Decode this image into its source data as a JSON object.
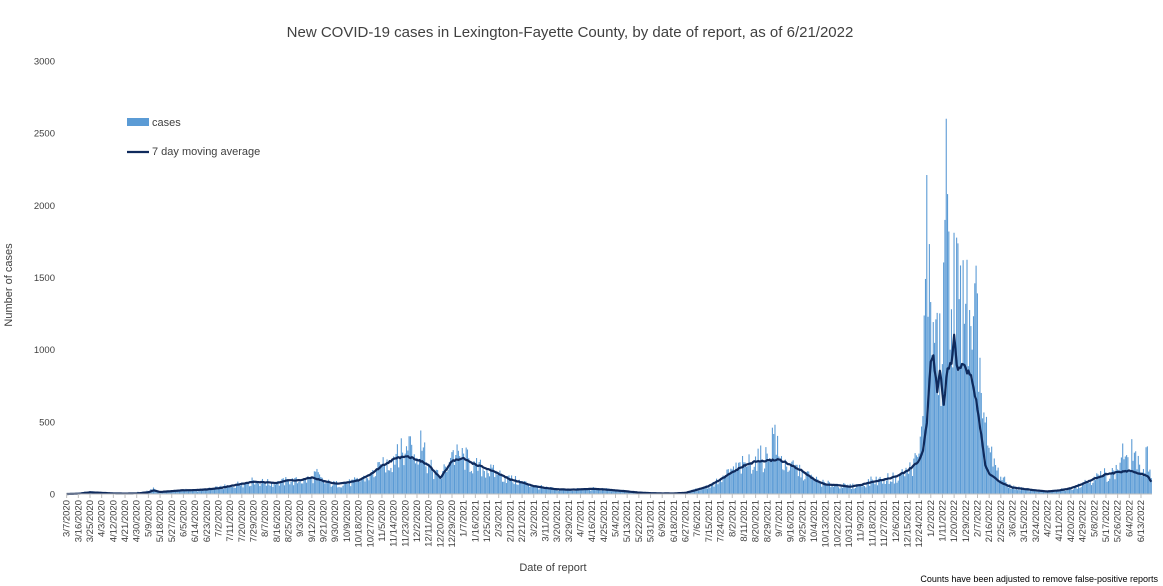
{
  "chart_data": {
    "type": "bar",
    "title": "New COVID-19 cases in Lexington-Fayette County, by date of report, as of 6/21/2022",
    "xlabel": "Date of report",
    "ylabel": "Number of cases",
    "ylim": [
      0,
      3000
    ],
    "y_ticks": [
      "0",
      "500",
      "1000",
      "1500",
      "2000",
      "2500",
      "3000"
    ],
    "x_tick_labels": [
      "3/7/2020",
      "3/16/2020",
      "3/25/2020",
      "4/3/2020",
      "4/12/2020",
      "4/21/2020",
      "4/30/2020",
      "5/9/2020",
      "5/18/2020",
      "5/27/2020",
      "6/5/2020",
      "6/14/2020",
      "6/23/2020",
      "7/2/2020",
      "7/11/2020",
      "7/20/2020",
      "7/29/2020",
      "8/7/2020",
      "8/16/2020",
      "8/25/2020",
      "9/3/2020",
      "9/12/2020",
      "9/21/2020",
      "9/30/2020",
      "10/9/2020",
      "10/18/2020",
      "10/27/2020",
      "11/5/2020",
      "11/14/2020",
      "11/23/2020",
      "12/2/2020",
      "12/11/2020",
      "12/20/2020",
      "12/29/2020",
      "1/7/2021",
      "1/16/2021",
      "1/25/2021",
      "2/3/2021",
      "2/12/2021",
      "2/21/2021",
      "3/2/2021",
      "3/11/2021",
      "3/20/2021",
      "3/29/2021",
      "4/7/2021",
      "4/16/2021",
      "4/25/2021",
      "5/4/2021",
      "5/13/2021",
      "5/22/2021",
      "5/31/2021",
      "6/9/2021",
      "6/18/2021",
      "6/27/2021",
      "7/6/2021",
      "7/15/2021",
      "7/24/2021",
      "8/2/2021",
      "8/11/2021",
      "8/20/2021",
      "8/29/2021",
      "9/7/2021",
      "9/16/2021",
      "9/25/2021",
      "10/4/2021",
      "10/13/2021",
      "10/22/2021",
      "10/31/2021",
      "11/9/2021",
      "11/18/2021",
      "11/27/2021",
      "12/6/2021",
      "12/15/2021",
      "12/24/2021",
      "1/2/2022",
      "1/11/2022",
      "1/20/2022",
      "1/29/2022",
      "2/7/2022",
      "2/16/2022",
      "2/25/2022",
      "3/6/2022",
      "3/15/2022",
      "3/24/2022",
      "4/2/2022",
      "4/11/2022",
      "4/20/2022",
      "4/29/2022",
      "5/8/2022",
      "5/17/2022",
      "5/26/2022",
      "6/4/2022",
      "6/13/2022"
    ],
    "x_range": [
      "3/7/2020",
      "6/21/2022"
    ],
    "series": [
      {
        "name": "cases",
        "kind": "bar",
        "color": "#5b9bd5",
        "points": [
          [
            "3/7/2020",
            1
          ],
          [
            "3/25/2020",
            18
          ],
          [
            "4/3/2020",
            10
          ],
          [
            "4/21/2020",
            4
          ],
          [
            "5/9/2020",
            20
          ],
          [
            "5/13/2020",
            45
          ],
          [
            "5/18/2020",
            12
          ],
          [
            "5/27/2020",
            22
          ],
          [
            "6/5/2020",
            30
          ],
          [
            "6/14/2020",
            28
          ],
          [
            "6/23/2020",
            35
          ],
          [
            "7/2/2020",
            45
          ],
          [
            "7/11/2020",
            60
          ],
          [
            "7/20/2020",
            80
          ],
          [
            "7/29/2020",
            95
          ],
          [
            "8/7/2020",
            85
          ],
          [
            "8/16/2020",
            80
          ],
          [
            "8/25/2020",
            100
          ],
          [
            "9/3/2020",
            95
          ],
          [
            "9/12/2020",
            120
          ],
          [
            "9/15/2020",
            155
          ],
          [
            "9/21/2020",
            90
          ],
          [
            "9/30/2020",
            75
          ],
          [
            "10/9/2020",
            80
          ],
          [
            "10/18/2020",
            100
          ],
          [
            "10/27/2020",
            140
          ],
          [
            "11/5/2020",
            200
          ],
          [
            "11/14/2020",
            260
          ],
          [
            "11/17/2020",
            345
          ],
          [
            "11/23/2020",
            280
          ],
          [
            "11/26/2020",
            400
          ],
          [
            "12/2/2020",
            250
          ],
          [
            "12/5/2020",
            440
          ],
          [
            "12/11/2020",
            210
          ],
          [
            "12/20/2020",
            120
          ],
          [
            "12/29/2020",
            290
          ],
          [
            "1/7/2021",
            280
          ],
          [
            "1/16/2021",
            210
          ],
          [
            "1/25/2021",
            180
          ],
          [
            "2/3/2021",
            150
          ],
          [
            "2/12/2021",
            110
          ],
          [
            "2/21/2021",
            90
          ],
          [
            "3/2/2021",
            60
          ],
          [
            "3/11/2021",
            45
          ],
          [
            "3/20/2021",
            35
          ],
          [
            "3/29/2021",
            30
          ],
          [
            "4/7/2021",
            35
          ],
          [
            "4/16/2021",
            40
          ],
          [
            "4/25/2021",
            35
          ],
          [
            "5/4/2021",
            30
          ],
          [
            "5/13/2021",
            20
          ],
          [
            "5/22/2021",
            12
          ],
          [
            "5/31/2021",
            8
          ],
          [
            "6/9/2021",
            5
          ],
          [
            "6/18/2021",
            5
          ],
          [
            "6/27/2021",
            10
          ],
          [
            "7/6/2021",
            35
          ],
          [
            "7/15/2021",
            60
          ],
          [
            "7/24/2021",
            110
          ],
          [
            "8/2/2021",
            170
          ],
          [
            "8/11/2021",
            220
          ],
          [
            "8/20/2021",
            260
          ],
          [
            "8/29/2021",
            280
          ],
          [
            "9/4/2021",
            480
          ],
          [
            "9/7/2021",
            260
          ],
          [
            "9/16/2021",
            210
          ],
          [
            "9/25/2021",
            170
          ],
          [
            "10/4/2021",
            110
          ],
          [
            "10/13/2021",
            75
          ],
          [
            "10/22/2021",
            70
          ],
          [
            "10/31/2021",
            55
          ],
          [
            "11/9/2021",
            70
          ],
          [
            "11/18/2021",
            100
          ],
          [
            "11/27/2021",
            110
          ],
          [
            "12/6/2021",
            130
          ],
          [
            "12/15/2021",
            170
          ],
          [
            "12/24/2021",
            280
          ],
          [
            "12/27/2021",
            540
          ],
          [
            "12/30/2021",
            2210
          ],
          [
            "1/2/2022",
            1330
          ],
          [
            "1/6/2022",
            1210
          ],
          [
            "1/11/2022",
            900
          ],
          [
            "1/14/2022",
            2600
          ],
          [
            "1/17/2022",
            1000
          ],
          [
            "1/20/2022",
            1810
          ],
          [
            "1/24/2022",
            1350
          ],
          [
            "1/27/2022",
            1620
          ],
          [
            "2/3/2022",
            1000
          ],
          [
            "2/7/2022",
            1390
          ],
          [
            "2/10/2022",
            700
          ],
          [
            "2/16/2022",
            320
          ],
          [
            "2/25/2022",
            120
          ],
          [
            "3/6/2022",
            50
          ],
          [
            "3/15/2022",
            40
          ],
          [
            "3/24/2022",
            25
          ],
          [
            "4/2/2022",
            20
          ],
          [
            "4/11/2022",
            30
          ],
          [
            "4/20/2022",
            45
          ],
          [
            "4/29/2022",
            80
          ],
          [
            "5/8/2022",
            120
          ],
          [
            "5/17/2022",
            150
          ],
          [
            "5/26/2022",
            170
          ],
          [
            "5/30/2022",
            350
          ],
          [
            "6/4/2022",
            170
          ],
          [
            "6/6/2022",
            380
          ],
          [
            "6/13/2022",
            150
          ],
          [
            "6/18/2022",
            330
          ],
          [
            "6/21/2022",
            110
          ]
        ]
      },
      {
        "name": "7 day moving average",
        "kind": "line",
        "color": "#0f2a5c",
        "points": [
          [
            "3/7/2020",
            0
          ],
          [
            "3/16/2020",
            2
          ],
          [
            "3/25/2020",
            12
          ],
          [
            "4/3/2020",
            8
          ],
          [
            "4/12/2020",
            4
          ],
          [
            "4/21/2020",
            3
          ],
          [
            "4/30/2020",
            4
          ],
          [
            "5/9/2020",
            12
          ],
          [
            "5/13/2020",
            25
          ],
          [
            "5/18/2020",
            14
          ],
          [
            "5/27/2020",
            20
          ],
          [
            "6/5/2020",
            26
          ],
          [
            "6/14/2020",
            27
          ],
          [
            "6/23/2020",
            32
          ],
          [
            "7/2/2020",
            40
          ],
          [
            "7/11/2020",
            55
          ],
          [
            "7/20/2020",
            70
          ],
          [
            "7/29/2020",
            85
          ],
          [
            "8/7/2020",
            80
          ],
          [
            "8/16/2020",
            78
          ],
          [
            "8/25/2020",
            95
          ],
          [
            "9/3/2020",
            95
          ],
          [
            "9/12/2020",
            115
          ],
          [
            "9/21/2020",
            90
          ],
          [
            "9/30/2020",
            72
          ],
          [
            "10/9/2020",
            78
          ],
          [
            "10/18/2020",
            95
          ],
          [
            "10/27/2020",
            135
          ],
          [
            "11/5/2020",
            195
          ],
          [
            "11/14/2020",
            240
          ],
          [
            "11/23/2020",
            265
          ],
          [
            "12/2/2020",
            240
          ],
          [
            "12/11/2020",
            200
          ],
          [
            "12/20/2020",
            110
          ],
          [
            "12/29/2020",
            230
          ],
          [
            "1/7/2021",
            245
          ],
          [
            "1/16/2021",
            205
          ],
          [
            "1/25/2021",
            175
          ],
          [
            "2/3/2021",
            140
          ],
          [
            "2/12/2021",
            100
          ],
          [
            "2/21/2021",
            80
          ],
          [
            "3/2/2021",
            55
          ],
          [
            "3/11/2021",
            42
          ],
          [
            "3/20/2021",
            33
          ],
          [
            "3/29/2021",
            30
          ],
          [
            "4/7/2021",
            32
          ],
          [
            "4/16/2021",
            36
          ],
          [
            "4/25/2021",
            32
          ],
          [
            "5/4/2021",
            25
          ],
          [
            "5/13/2021",
            18
          ],
          [
            "5/22/2021",
            10
          ],
          [
            "5/31/2021",
            6
          ],
          [
            "6/9/2021",
            4
          ],
          [
            "6/18/2021",
            4
          ],
          [
            "6/27/2021",
            8
          ],
          [
            "7/6/2021",
            30
          ],
          [
            "7/15/2021",
            55
          ],
          [
            "7/24/2021",
            100
          ],
          [
            "8/2/2021",
            150
          ],
          [
            "8/11/2021",
            195
          ],
          [
            "8/20/2021",
            225
          ],
          [
            "8/29/2021",
            230
          ],
          [
            "9/7/2021",
            240
          ],
          [
            "9/16/2021",
            200
          ],
          [
            "9/25/2021",
            160
          ],
          [
            "10/4/2021",
            100
          ],
          [
            "10/13/2021",
            65
          ],
          [
            "10/22/2021",
            62
          ],
          [
            "10/31/2021",
            50
          ],
          [
            "11/9/2021",
            62
          ],
          [
            "11/18/2021",
            85
          ],
          [
            "11/27/2021",
            100
          ],
          [
            "12/6/2021",
            120
          ],
          [
            "12/15/2021",
            160
          ],
          [
            "12/24/2021",
            230
          ],
          [
            "12/27/2021",
            300
          ],
          [
            "12/30/2021",
            500
          ],
          [
            "1/2/2022",
            920
          ],
          [
            "1/4/2022",
            960
          ],
          [
            "1/7/2022",
            700
          ],
          [
            "1/9/2022",
            850
          ],
          [
            "1/12/2022",
            630
          ],
          [
            "1/15/2022",
            880
          ],
          [
            "1/18/2022",
            900
          ],
          [
            "1/20/2022",
            1130
          ],
          [
            "1/22/2022",
            880
          ],
          [
            "1/27/2022",
            890
          ],
          [
            "2/2/2022",
            820
          ],
          [
            "2/7/2022",
            600
          ],
          [
            "2/10/2022",
            400
          ],
          [
            "2/13/2022",
            200
          ],
          [
            "2/16/2022",
            140
          ],
          [
            "2/25/2022",
            80
          ],
          [
            "3/6/2022",
            45
          ],
          [
            "3/15/2022",
            35
          ],
          [
            "3/24/2022",
            25
          ],
          [
            "4/2/2022",
            18
          ],
          [
            "4/11/2022",
            25
          ],
          [
            "4/20/2022",
            40
          ],
          [
            "4/29/2022",
            70
          ],
          [
            "5/8/2022",
            105
          ],
          [
            "5/17/2022",
            135
          ],
          [
            "5/26/2022",
            150
          ],
          [
            "6/4/2022",
            160
          ],
          [
            "6/13/2022",
            140
          ],
          [
            "6/18/2022",
            125
          ],
          [
            "6/21/2022",
            85
          ]
        ]
      }
    ],
    "legend_position": "upper-left",
    "grid": false
  },
  "footnote": "Counts have been adjusted to remove false-positive reports"
}
